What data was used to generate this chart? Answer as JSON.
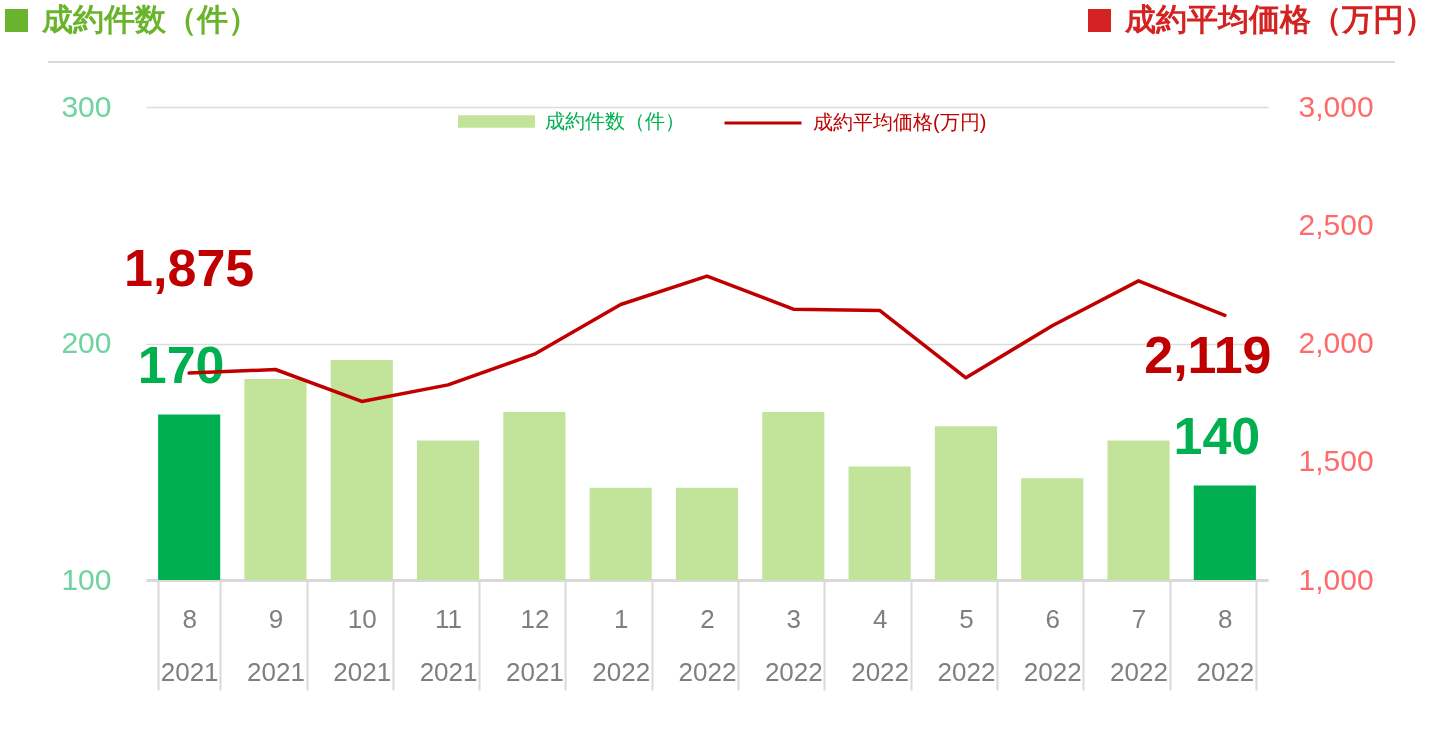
{
  "chart_data": {
    "type": "bar",
    "ylabel": "成約件数（件）",
    "y2label": "成約平均価格（万円）",
    "categories": [
      "8\n2021",
      "9\n2021",
      "10\n2021",
      "11\n2021",
      "12\n2021",
      "1\n2022",
      "2\n2022",
      "3\n2022",
      "4\n2022",
      "5\n2022",
      "6\n2022",
      "7\n2022",
      "8\n2022"
    ],
    "series": [
      {
        "name": "成約件数（件）",
        "color": "#c2e49a",
        "colors": [
          "#00b050",
          "#c2e49a",
          "#c2e49a",
          "#c2e49a",
          "#c2e49a",
          "#c2e49a",
          "#c2e49a",
          "#c2e49a",
          "#c2e49a",
          "#c2e49a",
          "#c2e49a",
          "#c2e49a",
          "#00b050"
        ],
        "values": [
          170,
          185,
          193,
          159,
          171,
          139,
          139,
          171,
          148,
          165,
          143,
          159,
          140
        ],
        "value_labels": [
          "170",
          null,
          null,
          null,
          null,
          null,
          null,
          null,
          null,
          null,
          null,
          null,
          "140"
        ]
      },
      {
        "name": "成約平均価格(万円)",
        "type": "line",
        "axis": "y2",
        "color": "#c00000",
        "values": [
          1875,
          1890,
          1755,
          1825,
          1955,
          2165,
          2285,
          2145,
          2140,
          1855,
          2075,
          2265,
          2119
        ],
        "value_labels": [
          "1,875",
          null,
          null,
          null,
          null,
          null,
          null,
          null,
          null,
          null,
          null,
          null,
          "2,119"
        ]
      }
    ],
    "ylim": [
      100,
      300
    ],
    "yticks": [
      100,
      200,
      300
    ],
    "y2lim": [
      1000,
      3000
    ],
    "y2ticks": [
      {
        "value": 1000,
        "label": "1,000"
      },
      {
        "value": 1500,
        "label": "1,500"
      },
      {
        "value": 2000,
        "label": "2,000"
      },
      {
        "value": 2500,
        "label": "2,500"
      },
      {
        "value": 3000,
        "label": "3,000"
      }
    ],
    "grid": "y",
    "legend": "top"
  }
}
